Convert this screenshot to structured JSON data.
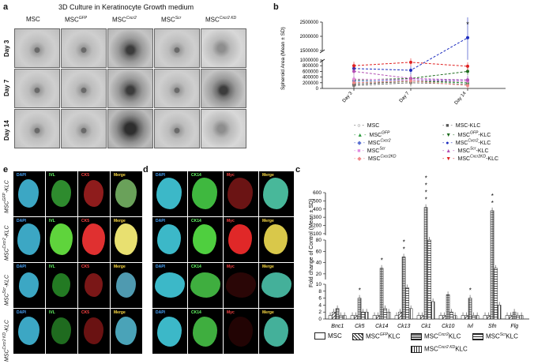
{
  "panel_a": {
    "letter": "a",
    "title": "3D Culture in Keratinocyte Growth medium",
    "columns": [
      "MSC",
      "MSC^GFP",
      "MSC^Cxcr2",
      "MSC^Scr",
      "MSC^Cxcr2 KD"
    ],
    "rows": [
      "Day 3",
      "Day 7",
      "Day 14"
    ]
  },
  "panel_b": {
    "letter": "b",
    "ylabel": "Spheroid Area (Mean ± SD)",
    "chart_data": {
      "type": "line",
      "x": [
        "Day 3",
        "Day 7",
        "Day 14"
      ],
      "yticks_upper": [
        "2500000",
        "2000000",
        "1500000"
      ],
      "yticks_lower": [
        "1000000",
        "800000",
        "600000",
        "400000",
        "200000",
        "0"
      ],
      "axis_break": true,
      "series": [
        {
          "name": "MSC",
          "values": [
            100000,
            200000,
            150000
          ],
          "color": "#777777"
        },
        {
          "name": "MSC-KLC",
          "values": [
            150000,
            250000,
            250000
          ],
          "color": "#555555"
        },
        {
          "name": "MSC^GFP",
          "values": [
            200000,
            250000,
            200000
          ],
          "color": "#2e9b3e"
        },
        {
          "name": "MSC^GFP-KLC",
          "values": [
            300000,
            350000,
            600000
          ],
          "color": "#1d6b1d"
        },
        {
          "name": "MSC^Cxcr2",
          "values": [
            250000,
            300000,
            300000
          ],
          "color": "#5a6fd0"
        },
        {
          "name": "MSC^Cxcr2-KLC",
          "values": [
            700000,
            640000,
            1950000
          ],
          "color": "#1c2cbf"
        },
        {
          "name": "MSC^Scr",
          "values": [
            330000,
            300000,
            250000
          ],
          "color": "#e08ae0"
        },
        {
          "name": "MSC^Scr-KLC",
          "values": [
            600000,
            350000,
            300000
          ],
          "color": "#b44fb4"
        },
        {
          "name": "MSC^Cxcr2KD",
          "values": [
            200000,
            260000,
            100000
          ],
          "color": "#f08a8a"
        },
        {
          "name": "MSC^Cxcr2KD-KLC",
          "values": [
            800000,
            920000,
            780000
          ],
          "color": "#e02020"
        }
      ],
      "annotation": {
        "text": "*",
        "x": "Day 14"
      }
    },
    "legend": [
      {
        "label": "MSC",
        "marker": "○",
        "color": "#444444"
      },
      {
        "label": "MSC-KLC",
        "marker": "■",
        "color": "#555555"
      },
      {
        "label": "MSC^GFP",
        "marker": "▲",
        "color": "#2e9b3e"
      },
      {
        "label": "MSC^GFP-KLC",
        "marker": "▼",
        "color": "#1d6b1d"
      },
      {
        "label": "MSC^Cxcr2",
        "marker": "◆",
        "color": "#5a6fd0"
      },
      {
        "label": "MSC^Cxcr2-KLC",
        "marker": "●",
        "color": "#1c2cbf"
      },
      {
        "label": "MSC^Scr",
        "marker": "■",
        "color": "#e08ae0"
      },
      {
        "label": "MSC^Scr-KLC",
        "marker": "▲",
        "color": "#b44fb4"
      },
      {
        "label": "MSC^Cxcr2KD",
        "marker": "◆",
        "color": "#f08a8a"
      },
      {
        "label": "MSC^Cxcr2KD-KLC",
        "marker": "▼",
        "color": "#e02020"
      }
    ]
  },
  "panel_c": {
    "letter": "c",
    "ylabel": "Fold change of Control (Mean ± SD)",
    "chart_data": {
      "type": "bar",
      "categories": [
        "Bnc1",
        "Ck5",
        "Ck14",
        "Ck13",
        "Ck1",
        "Ck10",
        "Ivl",
        "Sfn",
        "Flg"
      ],
      "yticks_top": [
        "600",
        "500",
        "400",
        "300",
        "200",
        "100"
      ],
      "yticks_mid": [
        "80",
        "60",
        "40",
        "20"
      ],
      "yticks_low": [
        "10",
        "8",
        "6",
        "4",
        "2",
        "0"
      ],
      "series": [
        {
          "name": "MSC",
          "values": [
            1,
            1,
            1,
            1,
            1,
            1,
            1,
            1,
            1
          ]
        },
        {
          "name": "MSC^GFP KLC",
          "values": [
            2,
            1,
            1,
            2,
            1,
            1,
            1,
            1,
            1
          ]
        },
        {
          "name": "MSC^Cxcr2 KLC",
          "values": [
            3,
            6,
            30,
            50,
            420,
            7,
            6,
            380,
            2
          ]
        },
        {
          "name": "MSC^Scr KLC",
          "values": [
            1,
            2,
            3,
            9,
            80,
            2,
            1,
            30,
            1
          ]
        },
        {
          "name": "MSC^Cxcr2 KD KLC",
          "values": [
            1,
            2,
            2,
            3,
            5,
            1,
            1,
            4,
            1
          ]
        }
      ],
      "significance": [
        "*",
        "*",
        "*",
        "*",
        "*",
        "*",
        "*",
        "*",
        "*",
        "*",
        "*"
      ]
    },
    "legend": [
      "MSC",
      "MSC^GFP KLC",
      "MSC^Cxcr2 KLC",
      "MSC^Scr KLC",
      "MSC^Cxcr2 KD KLC"
    ]
  },
  "panel_e": {
    "letter": "e",
    "channels": [
      "DAPI",
      "IVL",
      "CK5",
      "Merge"
    ],
    "rows": [
      "MSC^GFP-KLC",
      "MSC^Cxcr2-KLC",
      "MSC^Scr-KLC",
      "MSC^Cxcr2 KD-KLC"
    ]
  },
  "panel_d": {
    "letter": "d",
    "channels": [
      "DAPI",
      "CK14",
      "Myc",
      "Merge"
    ]
  }
}
